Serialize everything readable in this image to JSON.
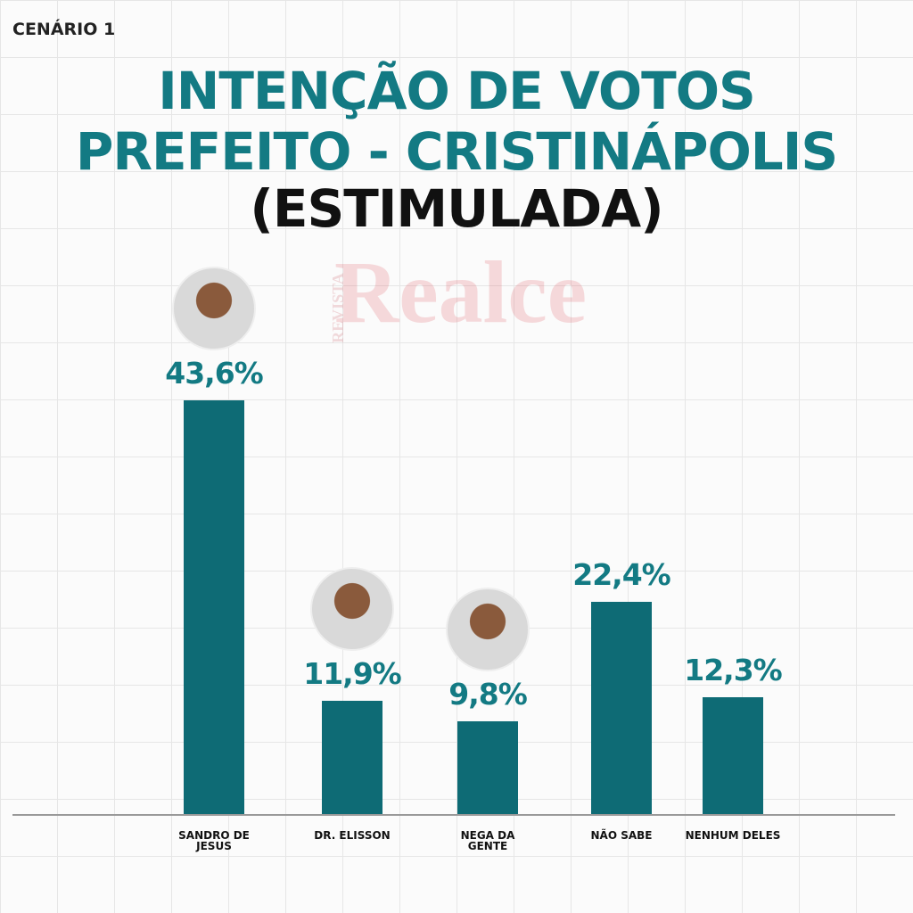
{
  "chart_data": {
    "type": "bar",
    "scenario": "CENÁRIO 1",
    "title": "INTENÇÃO DE VOTOS\nPREFEITO - CRISTINÁPOLIS",
    "subtitle": "(ESTIMULADA)",
    "watermark": [
      "REVISTA",
      "Realce"
    ],
    "categories": [
      "SANDRO DE JESUS",
      "DR. ELISSON",
      "NEGA DA GENTE",
      "NÃO SABE",
      "NENHUM DELES"
    ],
    "values": [
      43.6,
      11.9,
      9.8,
      22.4,
      12.3
    ],
    "value_labels": [
      "43,6%",
      "11,9%",
      "9,8%",
      "22,4%",
      "12,3%"
    ],
    "color": "#0e6b75"
  }
}
